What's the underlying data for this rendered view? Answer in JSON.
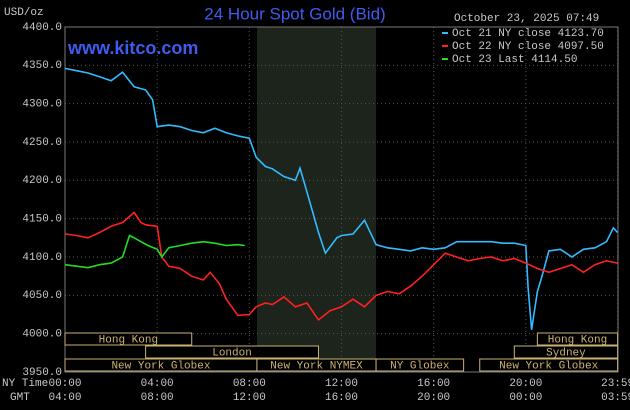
{
  "chart_data": {
    "type": "line",
    "title": "24 Hour Spot Gold (Bid)",
    "y_unit": "USD/oz",
    "timestamp": "October 23, 2025 07:49",
    "watermark": "www.kitco.com",
    "x_axis_label": "NY Time",
    "x2_axis_label": "GMT",
    "xlim": [
      0,
      24
    ],
    "ylim": [
      3950,
      4400
    ],
    "grid": true,
    "shaded_range": [
      8.33,
      13.5
    ],
    "yticks": [
      {
        "value": 4400,
        "label": "4400.0"
      },
      {
        "value": 4350,
        "label": "4350.0"
      },
      {
        "value": 4300,
        "label": "4300.0"
      },
      {
        "value": 4250,
        "label": "4250.0"
      },
      {
        "value": 4200,
        "label": "4200.0"
      },
      {
        "value": 4150,
        "label": "4150.0"
      },
      {
        "value": 4100,
        "label": "4100.0"
      },
      {
        "value": 4050,
        "label": "4050.0"
      },
      {
        "value": 4000,
        "label": "4000.0"
      },
      {
        "value": 3950,
        "label": "3950.0"
      }
    ],
    "xticks": [
      {
        "value": 0,
        "label": "00:00"
      },
      {
        "value": 4,
        "label": "04:00"
      },
      {
        "value": 8,
        "label": "08:00"
      },
      {
        "value": 12,
        "label": "12:00"
      },
      {
        "value": 16,
        "label": "16:00"
      },
      {
        "value": 20,
        "label": "20:00"
      },
      {
        "value": 23.983,
        "label": "23:59"
      }
    ],
    "x2ticks": [
      {
        "value": 0,
        "label": "04:00"
      },
      {
        "value": 4,
        "label": "08:00"
      },
      {
        "value": 8,
        "label": "12:00"
      },
      {
        "value": 12,
        "label": "16:00"
      },
      {
        "value": 16,
        "label": "20:00"
      },
      {
        "value": 20,
        "label": "00:00"
      },
      {
        "value": 23.983,
        "label": "03:59"
      }
    ],
    "sessions": [
      {
        "label": "Hong Kong",
        "start": 0,
        "end": 5.5,
        "row": 0
      },
      {
        "label": "London",
        "start": 3.5,
        "end": 11,
        "row": 1
      },
      {
        "label": "New York Globex",
        "start": 0,
        "end": 8.33,
        "row": 2
      },
      {
        "label": "New York NYMEX",
        "start": 8.33,
        "end": 13.5,
        "row": 2
      },
      {
        "label": "NY Globex",
        "start": 13.5,
        "end": 17.3,
        "row": 2
      },
      {
        "label": "Hong Kong",
        "start": 20.5,
        "end": 23.983,
        "row": 0
      },
      {
        "label": "Sydney",
        "start": 19.5,
        "end": 23.983,
        "row": 1
      },
      {
        "label": "New York Globex",
        "start": 18,
        "end": 23.983,
        "row": 2
      }
    ],
    "series": [
      {
        "name": "Oct 21 NY close 4123.70",
        "color": "#33bbff",
        "x": [
          0,
          0.5,
          1,
          1.5,
          2,
          2.5,
          3,
          3.5,
          3.8,
          4,
          4.5,
          5,
          5.5,
          6,
          6.5,
          7,
          7.5,
          8,
          8.3,
          8.7,
          9,
          9.5,
          10,
          10.2,
          10.5,
          11,
          11.3,
          11.8,
          12,
          12.5,
          13,
          13.5,
          14,
          14.5,
          15,
          15.5,
          16,
          16.5,
          17,
          17.5,
          18,
          18.5,
          19,
          19.5,
          20,
          20.1,
          20.25,
          20.5,
          20.7,
          21,
          21.5,
          22,
          22.5,
          23,
          23.5,
          23.8,
          23.98
        ],
        "values": [
          4346,
          4343,
          4340,
          4335,
          4330,
          4341,
          4322,
          4318,
          4305,
          4270,
          4272,
          4270,
          4265,
          4262,
          4268,
          4262,
          4258,
          4255,
          4230,
          4218,
          4215,
          4205,
          4200,
          4216,
          4185,
          4132,
          4105,
          4125,
          4128,
          4130,
          4148,
          4116,
          4112,
          4110,
          4108,
          4112,
          4110,
          4112,
          4120,
          4120,
          4120,
          4120,
          4118,
          4118,
          4115,
          4060,
          4005,
          4055,
          4075,
          4108,
          4110,
          4100,
          4110,
          4112,
          4120,
          4138,
          4132
        ]
      },
      {
        "name": "Oct 22 NY close 4097.50",
        "color": "#ff2020",
        "x": [
          0,
          0.5,
          1,
          1.5,
          2,
          2.5,
          3,
          3.3,
          3.5,
          4,
          4.2,
          4.5,
          5,
          5.5,
          6,
          6.3,
          6.7,
          7,
          7.5,
          8,
          8.3,
          8.7,
          9,
          9.5,
          10,
          10.5,
          11,
          11.5,
          12,
          12.5,
          13,
          13.5,
          14,
          14.5,
          15,
          15.5,
          16,
          16.5,
          17,
          17.5,
          18,
          18.5,
          19,
          19.5,
          20,
          20.5,
          21,
          21.5,
          22,
          22.5,
          23,
          23.5,
          23.98
        ],
        "values": [
          4130,
          4128,
          4125,
          4132,
          4140,
          4145,
          4158,
          4145,
          4142,
          4140,
          4100,
          4088,
          4085,
          4075,
          4070,
          4080,
          4065,
          4045,
          4024,
          4025,
          4035,
          4040,
          4038,
          4048,
          4035,
          4040,
          4018,
          4030,
          4035,
          4045,
          4035,
          4050,
          4055,
          4052,
          4062,
          4075,
          4090,
          4105,
          4100,
          4095,
          4098,
          4100,
          4095,
          4098,
          4092,
          4085,
          4080,
          4085,
          4090,
          4080,
          4090,
          4095,
          4092
        ]
      },
      {
        "name": "Oct 23 Last 4114.50",
        "color": "#22dd22",
        "x": [
          0,
          0.5,
          1,
          1.5,
          2,
          2.5,
          2.8,
          3,
          3.3,
          3.6,
          4,
          4.2,
          4.5,
          5,
          5.5,
          6,
          6.5,
          7,
          7.5,
          7.8
        ],
        "values": [
          4090,
          4088,
          4086,
          4090,
          4092,
          4100,
          4128,
          4125,
          4120,
          4115,
          4110,
          4100,
          4112,
          4115,
          4118,
          4120,
          4118,
          4115,
          4116,
          4115
        ]
      }
    ]
  }
}
